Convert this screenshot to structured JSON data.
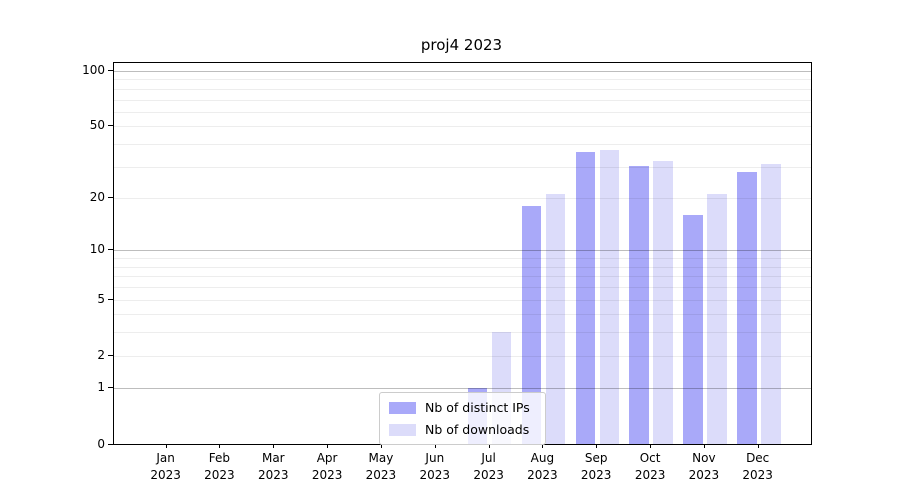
{
  "chart_data": {
    "type": "bar",
    "title": "proj4 2023",
    "categories": [
      "Jan",
      "Feb",
      "Mar",
      "Apr",
      "May",
      "Jun",
      "Jul",
      "Aug",
      "Sep",
      "Oct",
      "Nov",
      "Dec"
    ],
    "category_sublabel": "2023",
    "series": [
      {
        "name": "Nb of distinct IPs",
        "color": "#a9a9f9",
        "values": [
          0,
          0,
          0,
          0,
          0,
          0,
          1,
          18,
          36,
          30,
          16,
          28
        ]
      },
      {
        "name": "Nb of downloads",
        "color": "#dcdcfa",
        "values": [
          0,
          0,
          0,
          0,
          0,
          0,
          3,
          21,
          37,
          32,
          21,
          31
        ]
      }
    ],
    "xlabel": "",
    "ylabel": "",
    "yscale": "log1p",
    "ylim": [
      0,
      110
    ],
    "yticks_labeled": [
      0,
      1,
      2,
      5,
      10,
      20,
      50,
      100
    ],
    "yticks_emphasized": [
      1,
      10,
      100
    ],
    "yticks_minor": [
      3,
      4,
      6,
      7,
      8,
      9,
      30,
      40,
      60,
      70,
      80,
      90
    ],
    "grid": "on",
    "legend_position": "lower center"
  }
}
